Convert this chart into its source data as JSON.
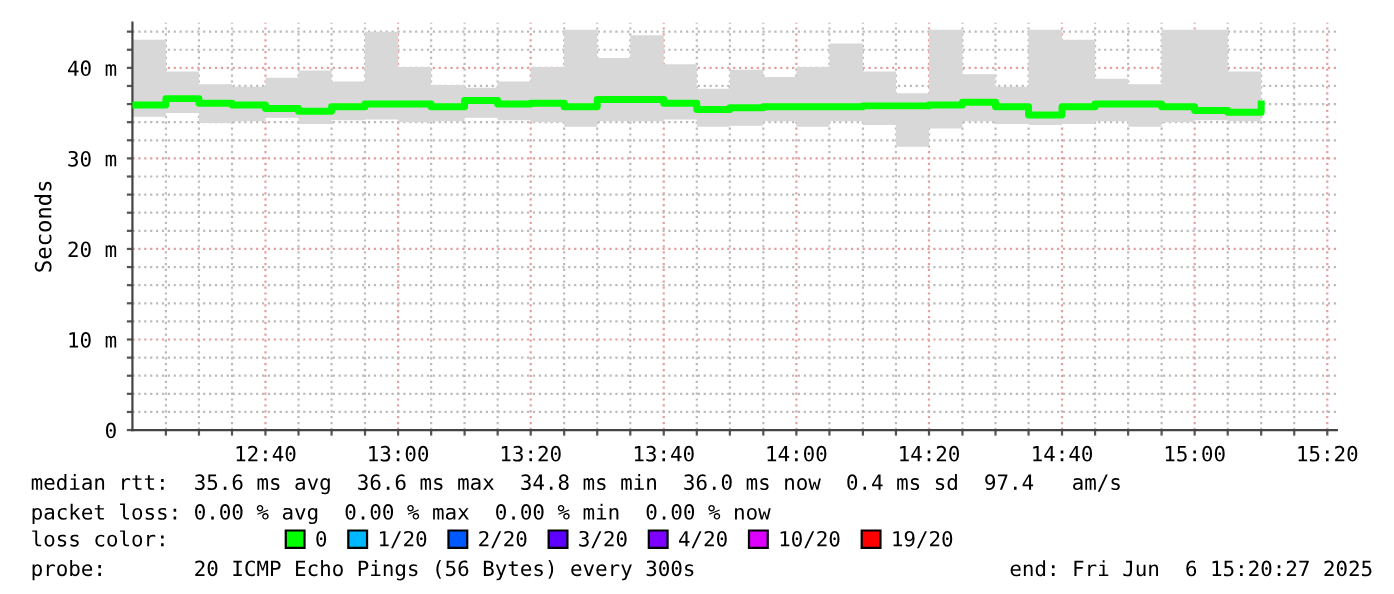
{
  "chart_data": {
    "type": "step",
    "ylabel": "Seconds",
    "legend_title": "loss color:",
    "legend": "bottom",
    "grid": true,
    "line_style": "solid",
    "marker": "none",
    "x": [
      12.333,
      12.417,
      12.5,
      12.583,
      12.667,
      12.75,
      12.833,
      12.917,
      13.0,
      13.083,
      13.167,
      13.25,
      13.333,
      13.417,
      13.5,
      13.583,
      13.667,
      13.75,
      13.833,
      13.917,
      14.0,
      14.083,
      14.167,
      14.25,
      14.333,
      14.417,
      14.5,
      14.583,
      14.667,
      14.75,
      14.833,
      14.917,
      15.0,
      15.083,
      15.167
    ],
    "xlim": [
      12.333,
      15.357
    ],
    "xticks": [
      {
        "value": 12.417,
        "label": null
      },
      {
        "value": 12.5,
        "label": null
      },
      {
        "value": 12.583,
        "label": null
      },
      {
        "value": 12.667,
        "label": "12:40"
      },
      {
        "value": 12.75,
        "label": null
      },
      {
        "value": 12.833,
        "label": null
      },
      {
        "value": 12.917,
        "label": null
      },
      {
        "value": 13.0,
        "label": "13:00"
      },
      {
        "value": 13.083,
        "label": null
      },
      {
        "value": 13.167,
        "label": null
      },
      {
        "value": 13.25,
        "label": null
      },
      {
        "value": 13.333,
        "label": "13:20"
      },
      {
        "value": 13.417,
        "label": null
      },
      {
        "value": 13.5,
        "label": null
      },
      {
        "value": 13.583,
        "label": null
      },
      {
        "value": 13.667,
        "label": "13:40"
      },
      {
        "value": 13.75,
        "label": null
      },
      {
        "value": 13.833,
        "label": null
      },
      {
        "value": 13.917,
        "label": null
      },
      {
        "value": 14.0,
        "label": "14:00"
      },
      {
        "value": 14.083,
        "label": null
      },
      {
        "value": 14.167,
        "label": null
      },
      {
        "value": 14.25,
        "label": null
      },
      {
        "value": 14.333,
        "label": "14:20"
      },
      {
        "value": 14.417,
        "label": null
      },
      {
        "value": 14.5,
        "label": null
      },
      {
        "value": 14.583,
        "label": null
      },
      {
        "value": 14.667,
        "label": "14:40"
      },
      {
        "value": 14.75,
        "label": null
      },
      {
        "value": 14.833,
        "label": null
      },
      {
        "value": 14.917,
        "label": null
      },
      {
        "value": 15.0,
        "label": "15:00"
      },
      {
        "value": 15.083,
        "label": null
      },
      {
        "value": 15.167,
        "label": null
      },
      {
        "value": 15.25,
        "label": null
      },
      {
        "value": 15.333,
        "label": "15:20"
      }
    ],
    "ylim": [
      0,
      45
    ],
    "yticks": [
      0,
      {
        "value": 2,
        "label": null
      },
      {
        "value": 4,
        "label": null
      },
      {
        "value": 6,
        "label": null
      },
      {
        "value": 8,
        "label": null
      },
      {
        "value": 10,
        "label": "10 m"
      },
      {
        "value": 12,
        "label": null
      },
      {
        "value": 14,
        "label": null
      },
      {
        "value": 16,
        "label": null
      },
      {
        "value": 18,
        "label": null
      },
      {
        "value": 20,
        "label": "20 m"
      },
      {
        "value": 22,
        "label": null
      },
      {
        "value": 24,
        "label": null
      },
      {
        "value": 26,
        "label": null
      },
      {
        "value": 28,
        "label": null
      },
      {
        "value": 30,
        "label": "30 m"
      },
      {
        "value": 32,
        "label": null
      },
      {
        "value": 34,
        "label": null
      },
      {
        "value": 36,
        "label": null
      },
      {
        "value": 38,
        "label": null
      },
      {
        "value": 40,
        "label": "40 m"
      },
      {
        "value": 42,
        "label": null
      },
      {
        "value": 44,
        "label": null
      }
    ],
    "series": [
      {
        "name": "0",
        "color": "#00ff00",
        "values": [
          35.9,
          36.6,
          36.1,
          35.9,
          35.5,
          35.2,
          35.7,
          36.0,
          36.0,
          35.7,
          36.4,
          36.0,
          36.1,
          35.7,
          36.5,
          36.5,
          36.1,
          35.4,
          35.6,
          35.7,
          35.7,
          35.7,
          35.8,
          35.8,
          35.9,
          36.2,
          35.7,
          34.8,
          35.7,
          36.0,
          36.0,
          35.7,
          35.3,
          35.1,
          36.0
        ],
        "lower": [
          34.6,
          35.0,
          33.9,
          34.1,
          34.5,
          33.8,
          34.2,
          34.3,
          34.0,
          34.1,
          34.5,
          34.2,
          34.0,
          33.5,
          34.1,
          34.1,
          34.3,
          33.5,
          33.6,
          34.1,
          33.5,
          34.1,
          33.7,
          31.3,
          33.3,
          34.1,
          33.8,
          33.7,
          33.8,
          34.1,
          33.5,
          34.0,
          34.2,
          34.1,
          34.1
        ],
        "upper": [
          43.1,
          39.6,
          38.2,
          37.9,
          38.9,
          39.7,
          38.5,
          44.0,
          40.1,
          38.1,
          37.8,
          38.5,
          40.1,
          44.2,
          41.1,
          43.6,
          40.4,
          37.7,
          39.8,
          39.0,
          40.1,
          42.7,
          39.6,
          37.2,
          44.2,
          39.3,
          37.9,
          44.2,
          43.1,
          38.8,
          38.2,
          44.2,
          44.2,
          39.6,
          44.2
        ]
      },
      {
        "name": "1/20",
        "color": "#00b8ff",
        "values": [
          null,
          null,
          null,
          null,
          null,
          null,
          null,
          null,
          null,
          null,
          null,
          null,
          null,
          null,
          null,
          null,
          null,
          null,
          null,
          null,
          null,
          null,
          null,
          null,
          null,
          null,
          null,
          null,
          null,
          null,
          null,
          null,
          null,
          null,
          null
        ]
      },
      {
        "name": "2/20",
        "color": "#0059ff",
        "values": [
          null,
          null,
          null,
          null,
          null,
          null,
          null,
          null,
          null,
          null,
          null,
          null,
          null,
          null,
          null,
          null,
          null,
          null,
          null,
          null,
          null,
          null,
          null,
          null,
          null,
          null,
          null,
          null,
          null,
          null,
          null,
          null,
          null,
          null,
          null
        ]
      },
      {
        "name": "3/20",
        "color": "#5e00ff",
        "values": [
          null,
          null,
          null,
          null,
          null,
          null,
          null,
          null,
          null,
          null,
          null,
          null,
          null,
          null,
          null,
          null,
          null,
          null,
          null,
          null,
          null,
          null,
          null,
          null,
          null,
          null,
          null,
          null,
          null,
          null,
          null,
          null,
          null,
          null,
          null
        ]
      },
      {
        "name": "4/20",
        "color": "#7e00ff",
        "values": [
          null,
          null,
          null,
          null,
          null,
          null,
          null,
          null,
          null,
          null,
          null,
          null,
          null,
          null,
          null,
          null,
          null,
          null,
          null,
          null,
          null,
          null,
          null,
          null,
          null,
          null,
          null,
          null,
          null,
          null,
          null,
          null,
          null,
          null,
          null
        ]
      },
      {
        "name": "10/20",
        "color": "#dd00ff",
        "values": [
          null,
          null,
          null,
          null,
          null,
          null,
          null,
          null,
          null,
          null,
          null,
          null,
          null,
          null,
          null,
          null,
          null,
          null,
          null,
          null,
          null,
          null,
          null,
          null,
          null,
          null,
          null,
          null,
          null,
          null,
          null,
          null,
          null,
          null,
          null
        ]
      },
      {
        "name": "19/20",
        "color": "#ff0000",
        "values": [
          null,
          null,
          null,
          null,
          null,
          null,
          null,
          null,
          null,
          null,
          null,
          null,
          null,
          null,
          null,
          null,
          null,
          null,
          null,
          null,
          null,
          null,
          null,
          null,
          null,
          null,
          null,
          null,
          null,
          null,
          null,
          null,
          null,
          null,
          null
        ]
      }
    ],
    "annotations": [
      "median rtt:  35.6 ms avg  36.6 ms max  34.8 ms min  36.0 ms now  0.4 ms sd  97.4   am/s",
      "packet loss: 0.00 % avg  0.00 % max  0.00 % min  0.00 % now",
      "probe:       20 ICMP Echo Pings (56 Bytes) every 300s",
      "end: Fri Jun  6 15:20:27 2025"
    ]
  }
}
